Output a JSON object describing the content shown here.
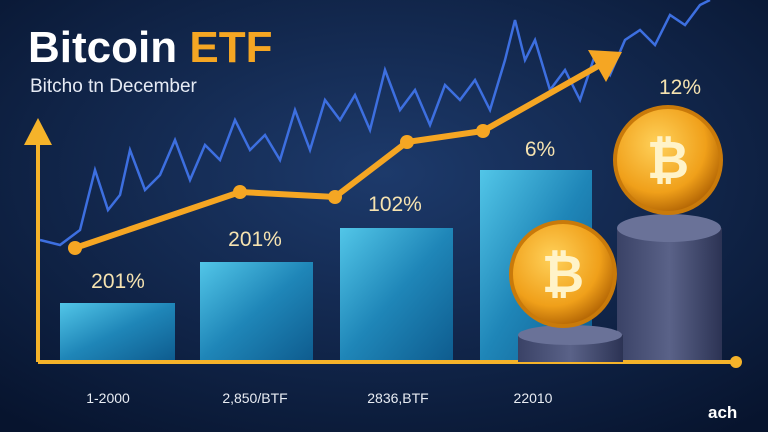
{
  "header": {
    "title_main": "Bitcoin",
    "title_accent": "ETF",
    "subtitle": "Bitcho tn December"
  },
  "labels": [
    "201%",
    "201%",
    "102%",
    "6%",
    "12%"
  ],
  "categories": [
    "1-2000",
    "2,850/BTF",
    "2836,BTF",
    "22010"
  ],
  "logo": "ach"
}
